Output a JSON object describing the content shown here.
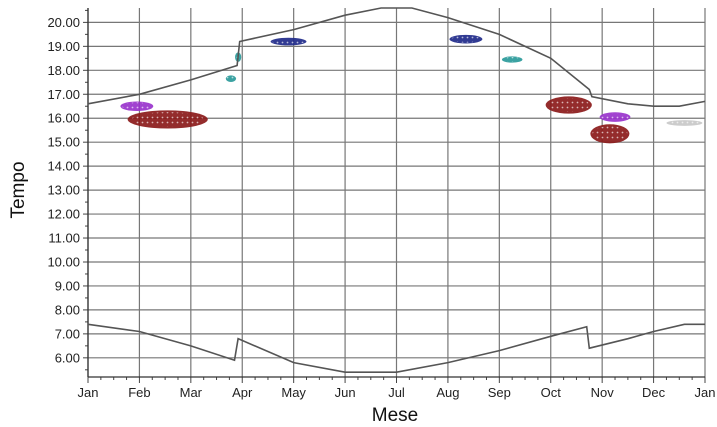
{
  "chart_data": {
    "type": "scatter",
    "xlabel": "Mese",
    "ylabel": "Tempo",
    "x_ticks": [
      "Jan",
      "Feb",
      "Mar",
      "Apr",
      "May",
      "Jun",
      "Jul",
      "Aug",
      "Sep",
      "Oct",
      "Nov",
      "Dec",
      "Jan"
    ],
    "y_ticks": [
      "6.00",
      "7.00",
      "8.00",
      "9.00",
      "10.00",
      "11.00",
      "12.00",
      "13.00",
      "14.00",
      "15.00",
      "16.00",
      "17.00",
      "18.00",
      "19.00",
      "20.00"
    ],
    "xlim": [
      0,
      12
    ],
    "ylim": [
      5.2,
      20.6
    ],
    "grid": true,
    "colors": {
      "line": "#555555",
      "grid": "#777777",
      "maroon": "#8b1a1a",
      "purple": "#9933cc",
      "navy": "#1f2a8a",
      "teal": "#2a9a9a",
      "lightgray": "#c8c8c8"
    },
    "lines": [
      {
        "points": [
          [
            0,
            16.6
          ],
          [
            1,
            17.0
          ],
          [
            2,
            17.6
          ],
          [
            2.9,
            18.2
          ],
          [
            2.95,
            19.2
          ],
          [
            4,
            19.7
          ],
          [
            5,
            20.3
          ],
          [
            5.7,
            20.6
          ],
          [
            6.3,
            20.6
          ],
          [
            7,
            20.2
          ],
          [
            8,
            19.5
          ],
          [
            9,
            18.5
          ],
          [
            9.75,
            17.2
          ],
          [
            9.8,
            16.9
          ],
          [
            10.5,
            16.6
          ],
          [
            11,
            16.5
          ],
          [
            11.5,
            16.5
          ],
          [
            12,
            16.7
          ]
        ]
      },
      {
        "points": [
          [
            0,
            7.4
          ],
          [
            1,
            7.1
          ],
          [
            2,
            6.5
          ],
          [
            2.85,
            5.9
          ],
          [
            2.92,
            6.8
          ],
          [
            4,
            5.8
          ],
          [
            5,
            5.4
          ],
          [
            6,
            5.4
          ],
          [
            7,
            5.8
          ],
          [
            8,
            6.3
          ],
          [
            9,
            6.9
          ],
          [
            9.7,
            7.3
          ],
          [
            9.75,
            6.4
          ],
          [
            10.5,
            6.8
          ],
          [
            11,
            7.1
          ],
          [
            11.6,
            7.4
          ],
          [
            12,
            7.4
          ]
        ]
      }
    ],
    "clusters": [
      {
        "color": "maroon",
        "x": 1.55,
        "y": 15.95,
        "rx": 0.78,
        "ry": 0.38
      },
      {
        "color": "purple",
        "x": 0.95,
        "y": 16.5,
        "rx": 0.32,
        "ry": 0.2
      },
      {
        "color": "teal",
        "x": 2.78,
        "y": 17.65,
        "rx": 0.1,
        "ry": 0.14
      },
      {
        "color": "teal",
        "x": 2.92,
        "y": 18.55,
        "rx": 0.06,
        "ry": 0.2
      },
      {
        "color": "navy",
        "x": 3.9,
        "y": 19.2,
        "rx": 0.35,
        "ry": 0.16
      },
      {
        "color": "navy",
        "x": 7.35,
        "y": 19.3,
        "rx": 0.32,
        "ry": 0.18
      },
      {
        "color": "teal",
        "x": 8.25,
        "y": 18.45,
        "rx": 0.2,
        "ry": 0.13
      },
      {
        "color": "maroon",
        "x": 9.35,
        "y": 16.55,
        "rx": 0.45,
        "ry": 0.36
      },
      {
        "color": "purple",
        "x": 10.25,
        "y": 16.05,
        "rx": 0.3,
        "ry": 0.2
      },
      {
        "color": "maroon",
        "x": 10.15,
        "y": 15.35,
        "rx": 0.38,
        "ry": 0.4
      },
      {
        "color": "lightgray",
        "x": 11.6,
        "y": 15.8,
        "rx": 0.35,
        "ry": 0.12
      }
    ]
  }
}
